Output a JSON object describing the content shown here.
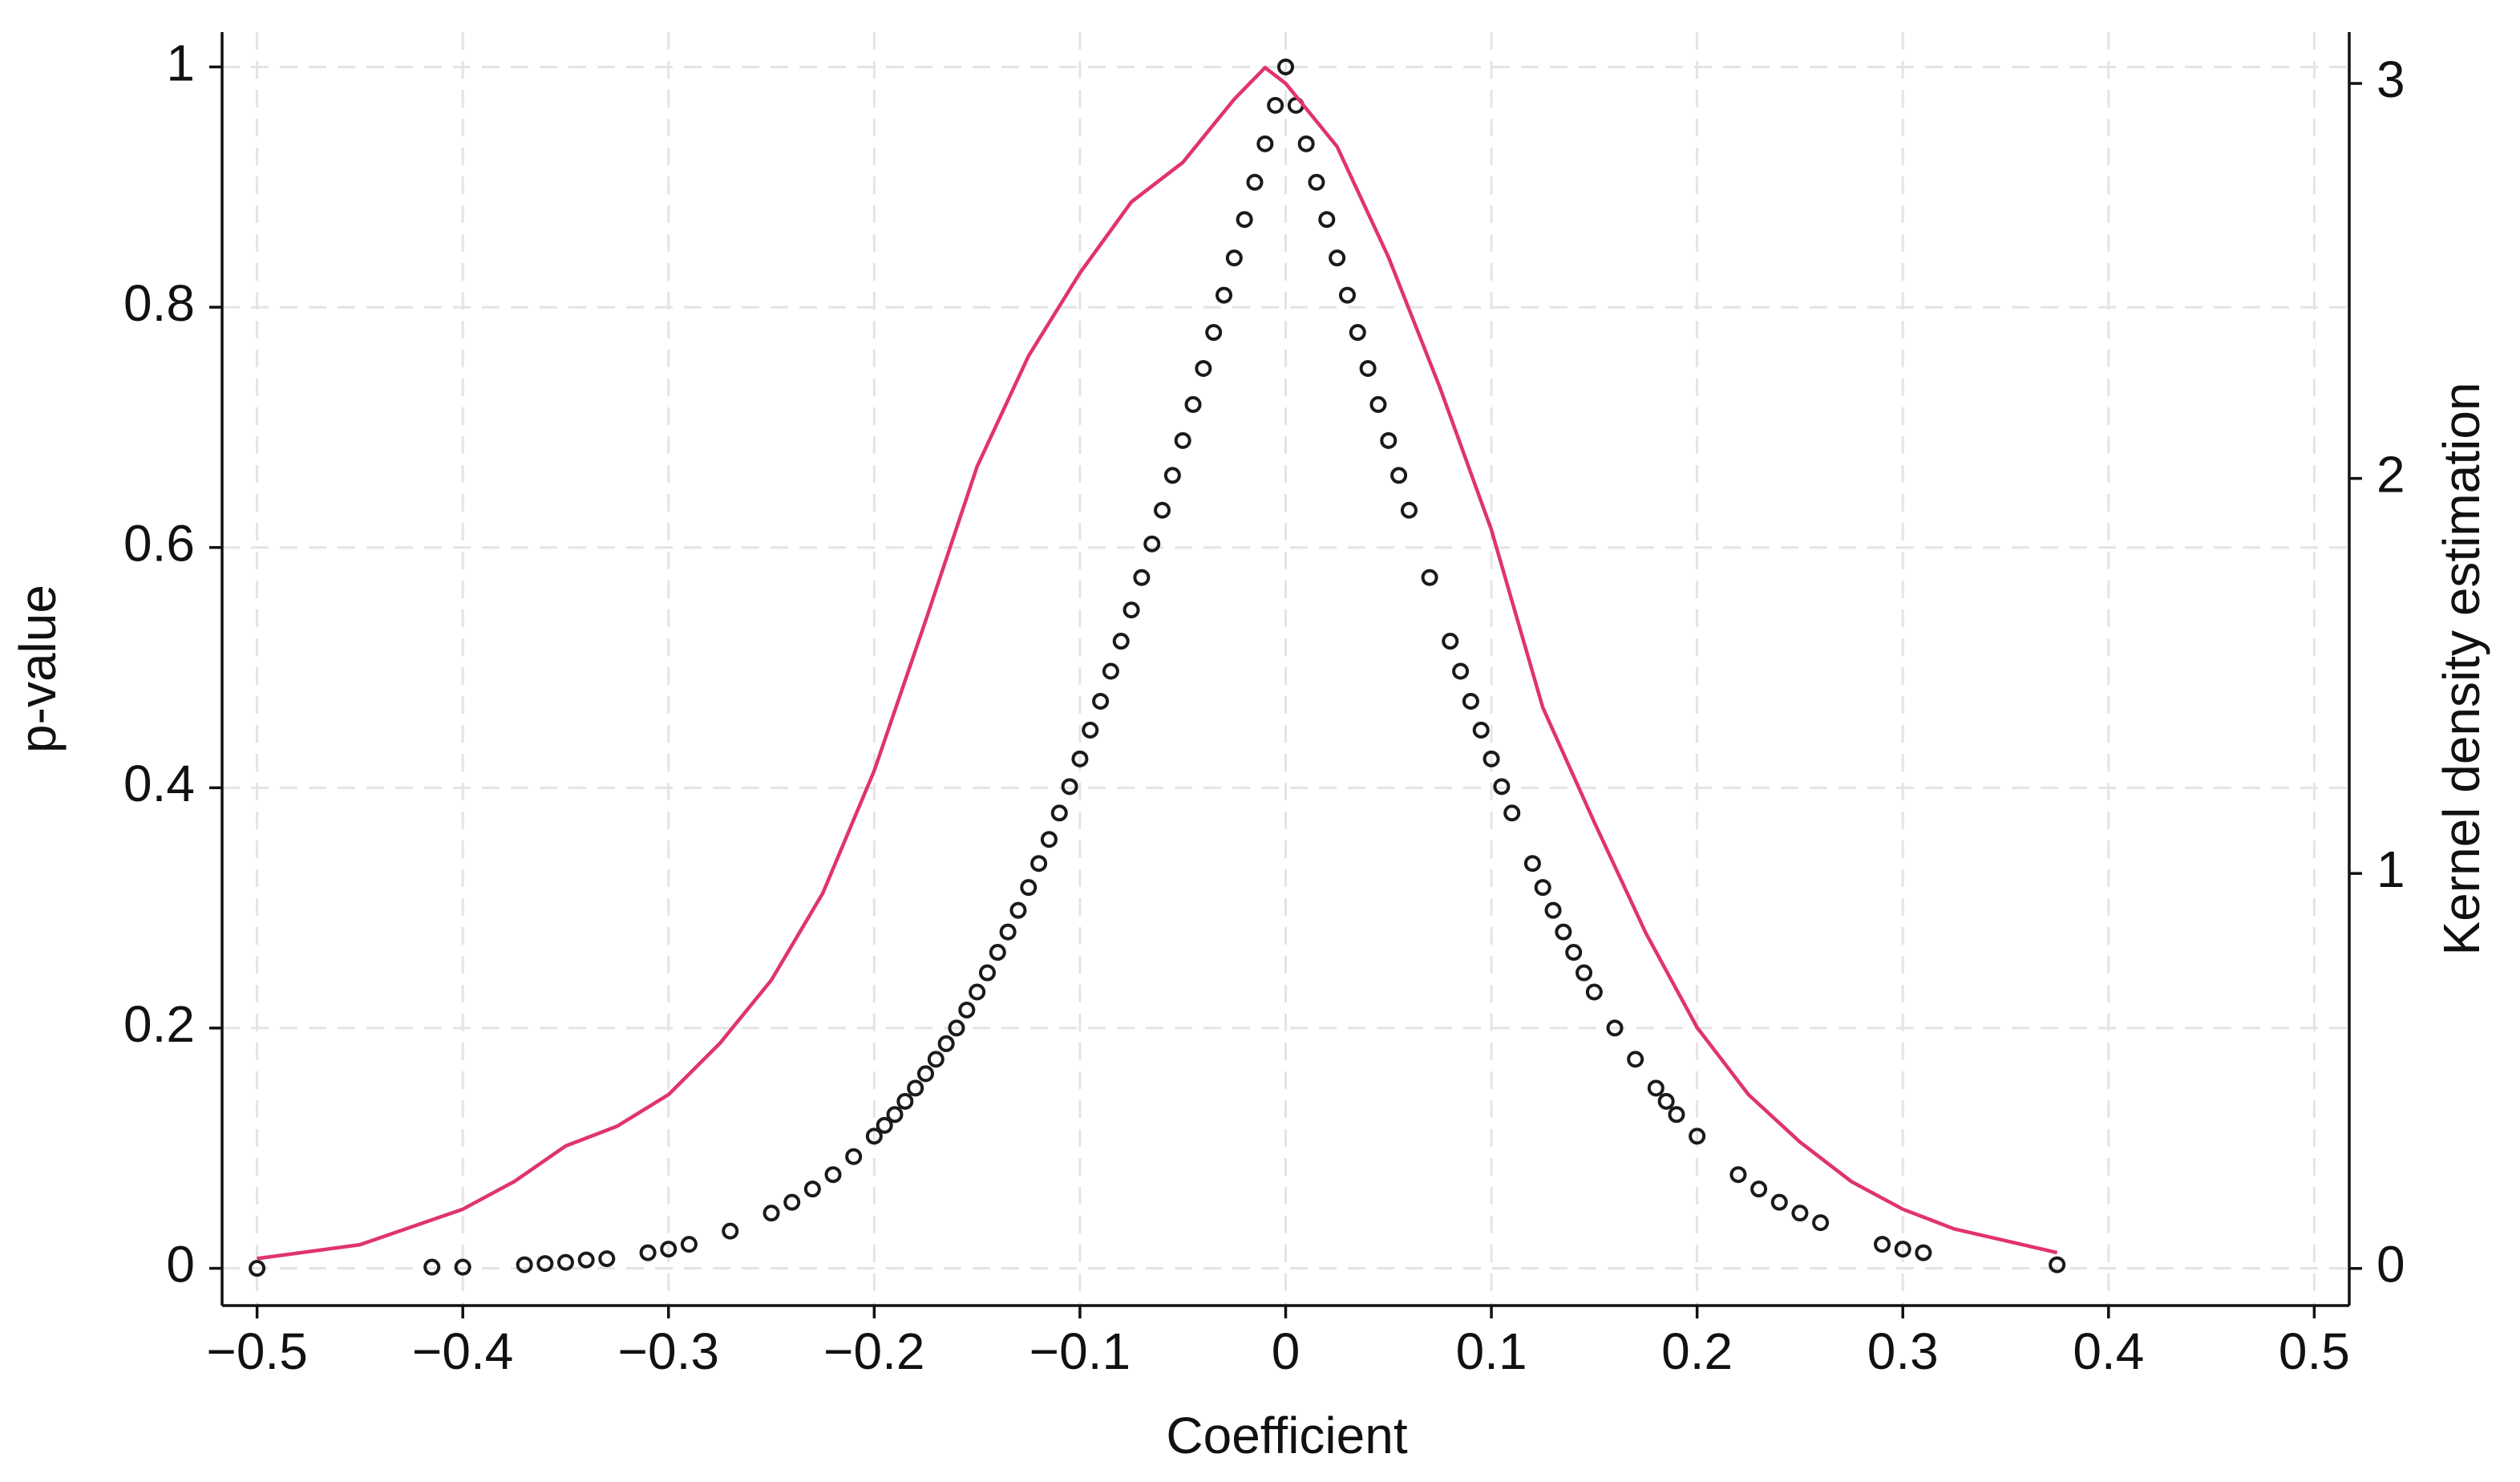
{
  "chart_data": {
    "type": "scatter",
    "xlabel": "Coefficient",
    "ylabel": "p-value",
    "y2label": "Kernel density estimation",
    "xlim": [
      -0.517,
      0.517
    ],
    "xticks": [
      {
        "value": -0.5,
        "label": "−0.5"
      },
      {
        "value": -0.4,
        "label": "−0.4"
      },
      {
        "value": -0.3,
        "label": "−0.3"
      },
      {
        "value": -0.2,
        "label": "−0.2"
      },
      {
        "value": -0.1,
        "label": "−0.1"
      },
      0,
      0.1,
      0.2,
      0.3,
      0.4,
      0.5
    ],
    "ylim": [
      -0.031,
      1.029
    ],
    "yticks": [
      0,
      0.2,
      0.4,
      0.6,
      0.8,
      1
    ],
    "y2lim": [
      -0.094,
      3.13
    ],
    "y2ticks": [
      0,
      1,
      2,
      3
    ],
    "grid": true,
    "series": [
      {
        "type": "scatter",
        "color": "#1a1a1a",
        "x": [
          -0.5,
          -0.415,
          -0.4,
          -0.37,
          -0.36,
          -0.35,
          -0.34,
          -0.33,
          -0.31,
          -0.3,
          -0.29,
          -0.27,
          -0.25,
          -0.24,
          -0.23,
          -0.22,
          -0.21,
          -0.2,
          -0.195,
          -0.19,
          -0.185,
          -0.18,
          -0.175,
          -0.17,
          -0.165,
          -0.16,
          -0.155,
          -0.15,
          -0.145,
          -0.14,
          -0.135,
          -0.13,
          -0.125,
          -0.12,
          -0.115,
          -0.11,
          -0.105,
          -0.1,
          -0.095,
          -0.09,
          -0.085,
          -0.08,
          -0.075,
          -0.07,
          -0.065,
          -0.06,
          -0.055,
          -0.05,
          -0.045,
          -0.04,
          -0.035,
          -0.03,
          -0.025,
          -0.02,
          -0.015,
          -0.01,
          -0.005,
          0,
          0.005,
          0.01,
          0.015,
          0.02,
          0.025,
          0.03,
          0.035,
          0.04,
          0.045,
          0.05,
          0.055,
          0.06,
          0.07,
          0.08,
          0.085,
          0.09,
          0.095,
          0.1,
          0.105,
          0.11,
          0.12,
          0.125,
          0.13,
          0.135,
          0.14,
          0.145,
          0.15,
          0.16,
          0.17,
          0.18,
          0.185,
          0.19,
          0.2,
          0.22,
          0.23,
          0.24,
          0.25,
          0.26,
          0.29,
          0.3,
          0.31,
          0.375
        ],
        "values": [
          0.0,
          0.001,
          0.001,
          0.003,
          0.004,
          0.005,
          0.007,
          0.008,
          0.013,
          0.016,
          0.02,
          0.031,
          0.046,
          0.055,
          0.066,
          0.078,
          0.093,
          0.11,
          0.119,
          0.128,
          0.139,
          0.15,
          0.162,
          0.174,
          0.187,
          0.2,
          0.215,
          0.23,
          0.246,
          0.263,
          0.28,
          0.298,
          0.317,
          0.337,
          0.357,
          0.379,
          0.401,
          0.424,
          0.448,
          0.472,
          0.497,
          0.522,
          0.548,
          0.575,
          0.603,
          0.631,
          0.66,
          0.689,
          0.719,
          0.749,
          0.779,
          0.81,
          0.841,
          0.873,
          0.904,
          0.936,
          0.968,
          1.0,
          0.968,
          0.936,
          0.904,
          0.873,
          0.841,
          0.81,
          0.779,
          0.749,
          0.719,
          0.689,
          0.66,
          0.631,
          0.575,
          0.522,
          0.497,
          0.472,
          0.448,
          0.424,
          0.401,
          0.379,
          0.337,
          0.317,
          0.298,
          0.28,
          0.263,
          0.246,
          0.23,
          0.2,
          0.174,
          0.15,
          0.139,
          0.128,
          0.11,
          0.078,
          0.066,
          0.055,
          0.046,
          0.038,
          0.02,
          0.016,
          0.013,
          0.003
        ]
      },
      {
        "type": "line",
        "color": "#e0336f",
        "axis": "y2",
        "x": [
          -0.5,
          -0.45,
          -0.4,
          -0.375,
          -0.35,
          -0.325,
          -0.3,
          -0.275,
          -0.25,
          -0.225,
          -0.2,
          -0.175,
          -0.15,
          -0.125,
          -0.1,
          -0.075,
          -0.05,
          -0.025,
          -0.01,
          0,
          0.025,
          0.05,
          0.075,
          0.1,
          0.125,
          0.15,
          0.175,
          0.2,
          0.225,
          0.25,
          0.275,
          0.3,
          0.325,
          0.35,
          0.375
        ],
        "values": [
          0.025,
          0.06,
          0.15,
          0.22,
          0.31,
          0.36,
          0.44,
          0.57,
          0.73,
          0.95,
          1.26,
          1.64,
          2.03,
          2.31,
          2.52,
          2.7,
          2.8,
          2.96,
          3.04,
          3.0,
          2.84,
          2.56,
          2.23,
          1.87,
          1.42,
          1.13,
          0.85,
          0.61,
          0.44,
          0.32,
          0.22,
          0.15,
          0.1,
          0.07,
          0.04
        ]
      }
    ]
  }
}
